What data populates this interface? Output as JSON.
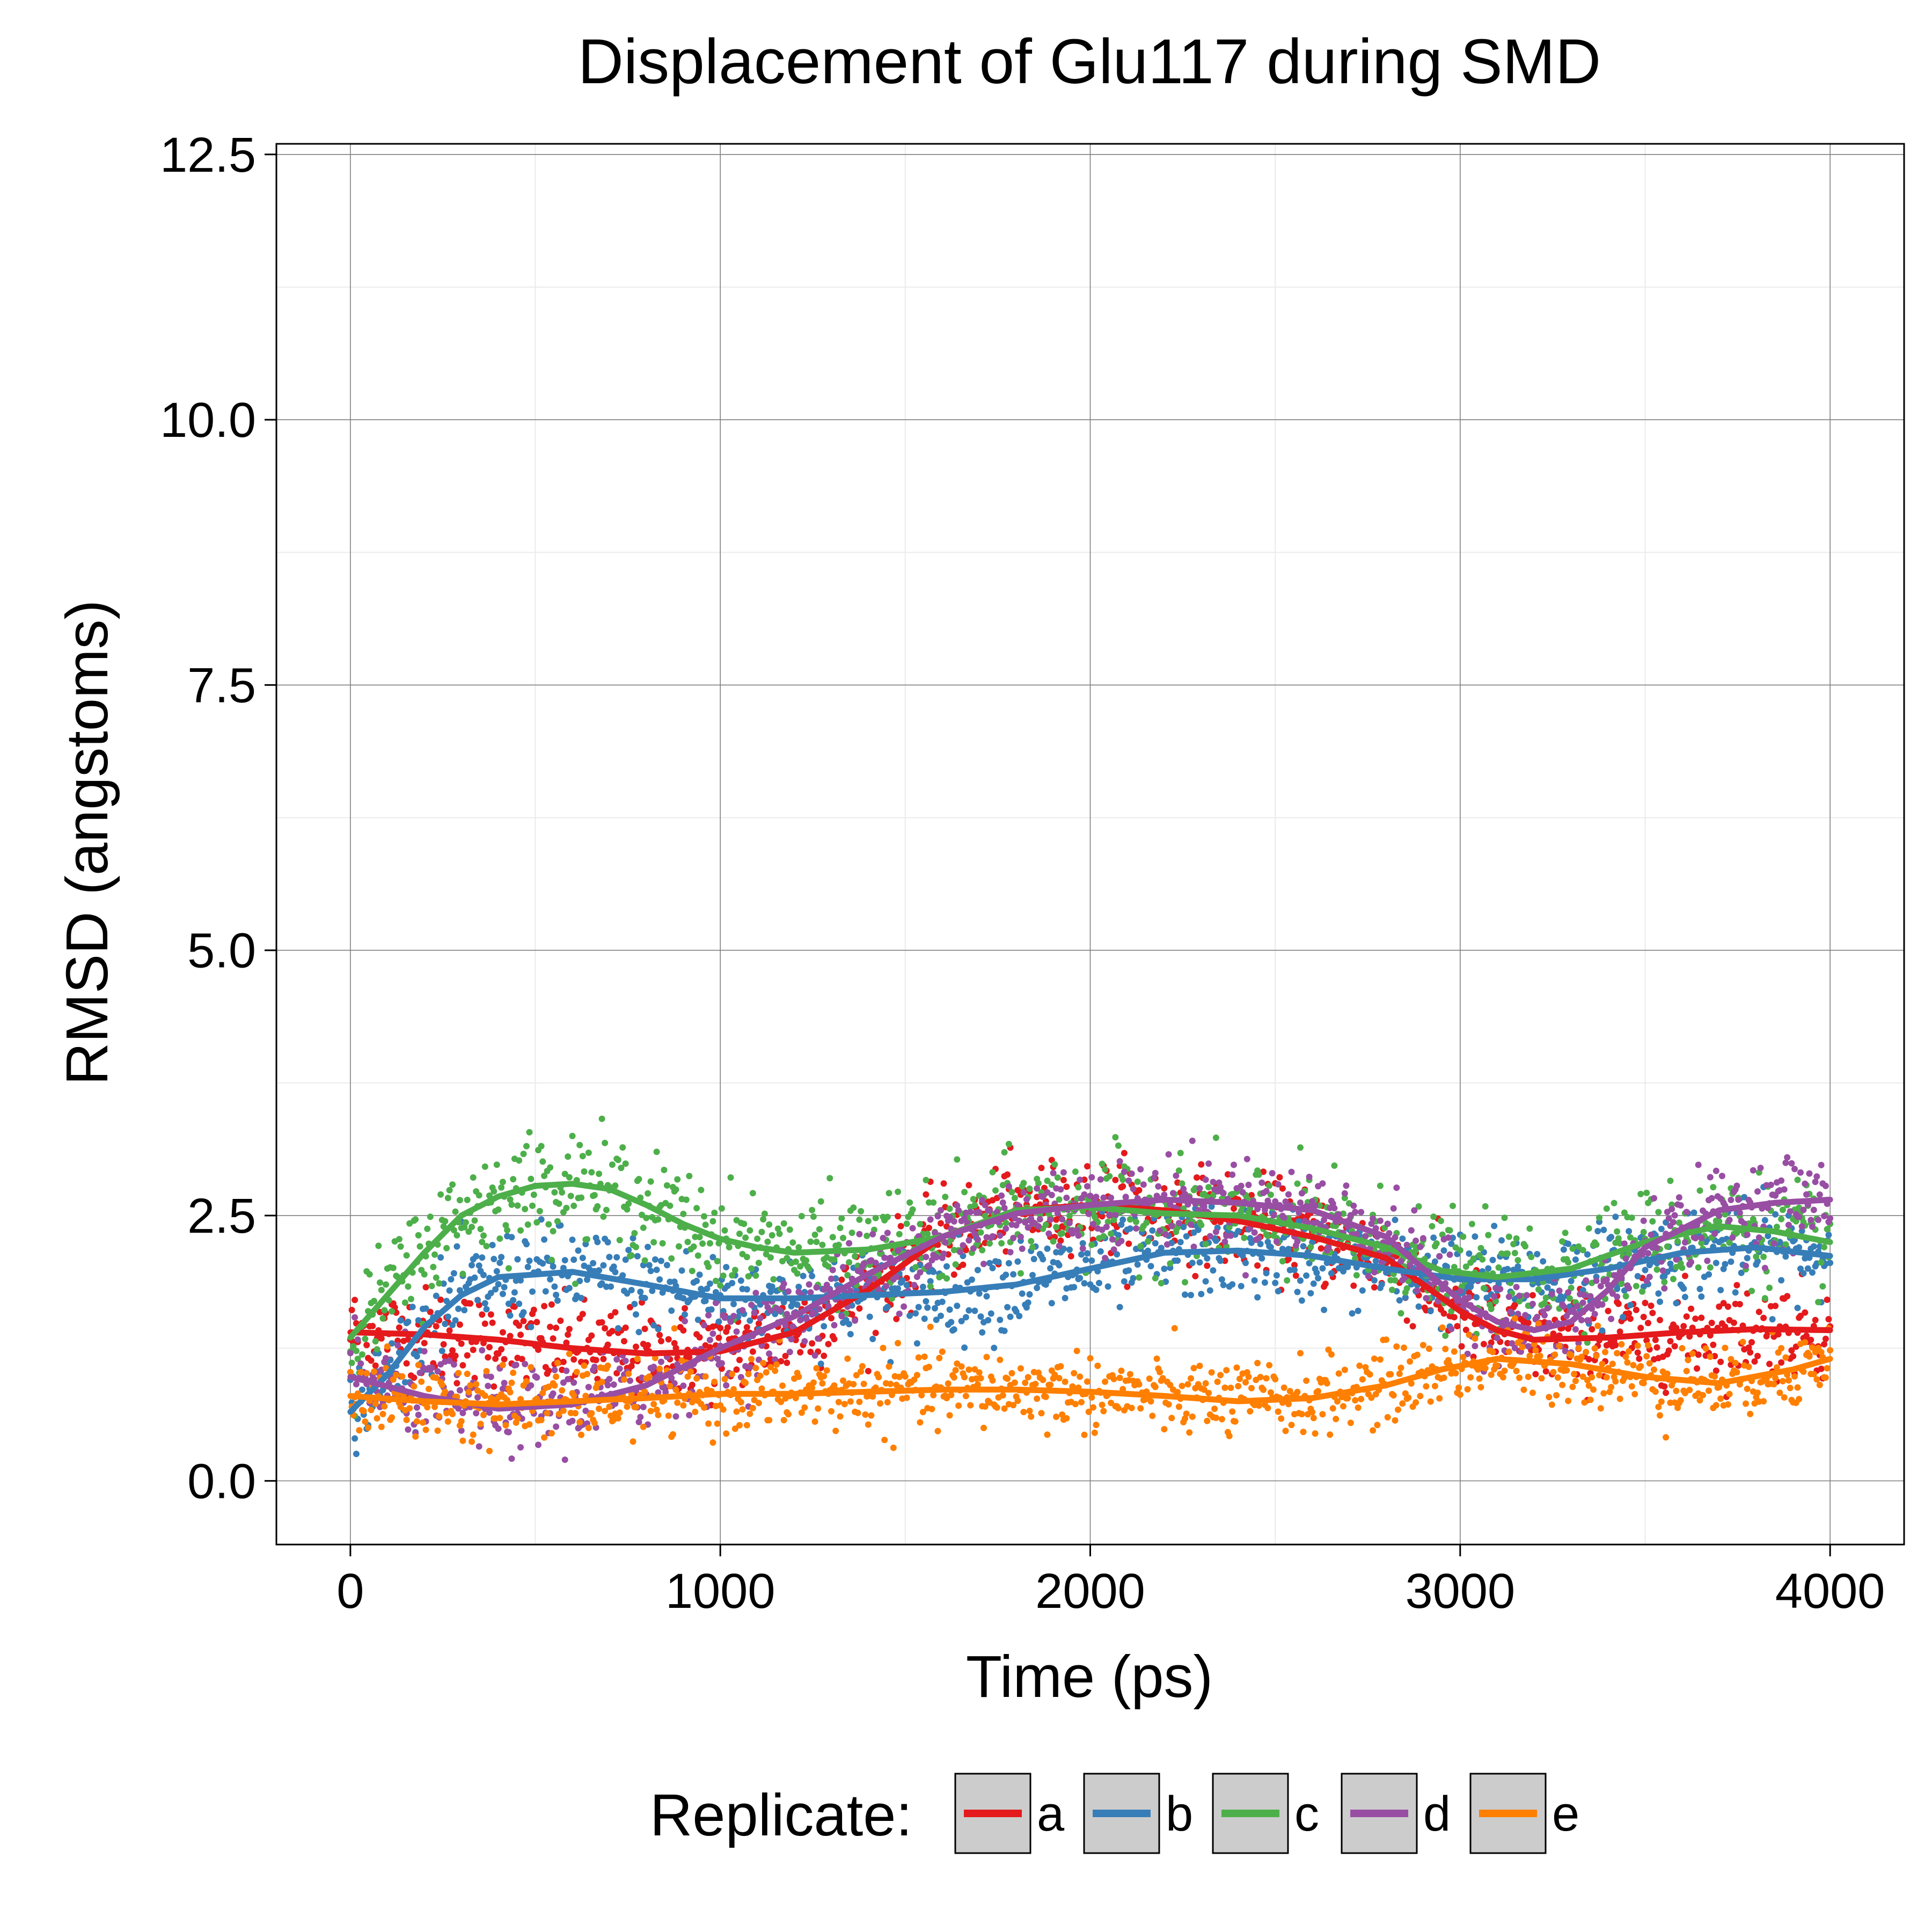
{
  "chart_data": {
    "type": "scatter",
    "title": "Displacement of Glu117 during SMD",
    "xlabel": "Time (ps)",
    "ylabel": "RMSD (angstoms)",
    "xlim": [
      -200,
      4200
    ],
    "ylim": [
      -0.6,
      12.6
    ],
    "xticks": [
      0,
      1000,
      2000,
      3000,
      4000
    ],
    "xtick_labels": [
      "0",
      "1000",
      "2000",
      "3000",
      "4000"
    ],
    "yticks": [
      0.0,
      2.5,
      5.0,
      7.5,
      10.0,
      12.5
    ],
    "ytick_labels": [
      "0.0",
      "2.5",
      "5.0",
      "7.5",
      "10.0",
      "12.5"
    ],
    "grid": true,
    "legend": {
      "title": "Replicate:",
      "placement": "bottom",
      "entries": [
        "a",
        "b",
        "c",
        "d",
        "e"
      ]
    },
    "overlay": "scatter points with smoothed trend line per replicate",
    "series": [
      {
        "name": "a",
        "color": "#e41a1c",
        "noise": 0.22,
        "trend": [
          [
            0,
            1.4
          ],
          [
            200,
            1.38
          ],
          [
            400,
            1.33
          ],
          [
            600,
            1.25
          ],
          [
            800,
            1.2
          ],
          [
            1000,
            1.22
          ],
          [
            1200,
            1.4
          ],
          [
            1400,
            1.8
          ],
          [
            1600,
            2.3
          ],
          [
            1800,
            2.55
          ],
          [
            2000,
            2.6
          ],
          [
            2200,
            2.55
          ],
          [
            2400,
            2.45
          ],
          [
            2600,
            2.3
          ],
          [
            2800,
            2.1
          ],
          [
            2900,
            1.85
          ],
          [
            3000,
            1.6
          ],
          [
            3100,
            1.42
          ],
          [
            3200,
            1.33
          ],
          [
            3400,
            1.35
          ],
          [
            3600,
            1.4
          ],
          [
            3800,
            1.43
          ],
          [
            4000,
            1.42
          ]
        ]
      },
      {
        "name": "b",
        "color": "#377eb8",
        "noise": 0.22,
        "trend": [
          [
            0,
            0.65
          ],
          [
            100,
            1.0
          ],
          [
            200,
            1.45
          ],
          [
            300,
            1.75
          ],
          [
            400,
            1.92
          ],
          [
            600,
            1.97
          ],
          [
            800,
            1.85
          ],
          [
            1000,
            1.72
          ],
          [
            1200,
            1.72
          ],
          [
            1400,
            1.75
          ],
          [
            1600,
            1.78
          ],
          [
            1800,
            1.85
          ],
          [
            2000,
            2.0
          ],
          [
            2200,
            2.15
          ],
          [
            2400,
            2.17
          ],
          [
            2600,
            2.12
          ],
          [
            2800,
            2.0
          ],
          [
            3000,
            1.9
          ],
          [
            3200,
            1.9
          ],
          [
            3400,
            2.0
          ],
          [
            3600,
            2.15
          ],
          [
            3800,
            2.2
          ],
          [
            4000,
            2.12
          ]
        ]
      },
      {
        "name": "c",
        "color": "#4daf4a",
        "noise": 0.25,
        "trend": [
          [
            0,
            1.35
          ],
          [
            100,
            1.75
          ],
          [
            200,
            2.15
          ],
          [
            300,
            2.5
          ],
          [
            400,
            2.68
          ],
          [
            500,
            2.78
          ],
          [
            600,
            2.8
          ],
          [
            700,
            2.75
          ],
          [
            800,
            2.6
          ],
          [
            900,
            2.42
          ],
          [
            1000,
            2.28
          ],
          [
            1100,
            2.2
          ],
          [
            1200,
            2.15
          ],
          [
            1400,
            2.18
          ],
          [
            1600,
            2.3
          ],
          [
            1800,
            2.55
          ],
          [
            2000,
            2.58
          ],
          [
            2200,
            2.52
          ],
          [
            2400,
            2.5
          ],
          [
            2600,
            2.38
          ],
          [
            2800,
            2.2
          ],
          [
            2950,
            1.98
          ],
          [
            3100,
            1.92
          ],
          [
            3300,
            2.0
          ],
          [
            3500,
            2.25
          ],
          [
            3700,
            2.4
          ],
          [
            3850,
            2.35
          ],
          [
            4000,
            2.25
          ]
        ]
      },
      {
        "name": "d",
        "color": "#984ea3",
        "noise": 0.2,
        "trend": [
          [
            0,
            0.98
          ],
          [
            200,
            0.8
          ],
          [
            400,
            0.68
          ],
          [
            600,
            0.72
          ],
          [
            800,
            0.9
          ],
          [
            1000,
            1.25
          ],
          [
            1200,
            1.55
          ],
          [
            1400,
            1.95
          ],
          [
            1600,
            2.3
          ],
          [
            1800,
            2.52
          ],
          [
            2000,
            2.6
          ],
          [
            2200,
            2.65
          ],
          [
            2400,
            2.62
          ],
          [
            2600,
            2.55
          ],
          [
            2800,
            2.3
          ],
          [
            3000,
            1.7
          ],
          [
            3100,
            1.5
          ],
          [
            3200,
            1.42
          ],
          [
            3300,
            1.5
          ],
          [
            3400,
            1.8
          ],
          [
            3500,
            2.2
          ],
          [
            3700,
            2.55
          ],
          [
            3850,
            2.62
          ],
          [
            4000,
            2.65
          ]
        ]
      },
      {
        "name": "e",
        "color": "#ff7f00",
        "noise": 0.18,
        "trend": [
          [
            0,
            0.8
          ],
          [
            200,
            0.75
          ],
          [
            400,
            0.72
          ],
          [
            600,
            0.75
          ],
          [
            800,
            0.78
          ],
          [
            1000,
            0.82
          ],
          [
            1200,
            0.82
          ],
          [
            1400,
            0.84
          ],
          [
            1600,
            0.86
          ],
          [
            1800,
            0.86
          ],
          [
            2000,
            0.84
          ],
          [
            2200,
            0.8
          ],
          [
            2400,
            0.75
          ],
          [
            2600,
            0.78
          ],
          [
            2800,
            0.9
          ],
          [
            2950,
            1.05
          ],
          [
            3100,
            1.15
          ],
          [
            3300,
            1.1
          ],
          [
            3500,
            0.98
          ],
          [
            3700,
            0.92
          ],
          [
            3900,
            1.05
          ],
          [
            4000,
            1.15
          ]
        ]
      }
    ]
  }
}
